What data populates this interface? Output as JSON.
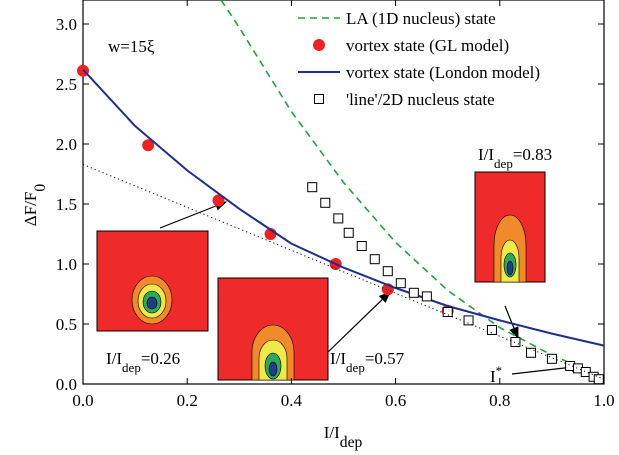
{
  "chart_data": {
    "type": "line",
    "xlabel": {
      "text": "I/I",
      "sub": "dep"
    },
    "ylabel": {
      "text": "ΔF/F",
      "sub": "0"
    },
    "xlim": [
      0,
      1
    ],
    "ylim": [
      0,
      3.2
    ],
    "xticks": [
      {
        "value": 0,
        "label": "0.0"
      },
      0.2,
      0.4,
      0.6,
      0.8,
      {
        "value": 1,
        "label": "1.0"
      }
    ],
    "yticks": [
      {
        "value": 0,
        "label": "0.0"
      },
      0.5,
      {
        "value": 1,
        "label": "1.0"
      },
      1.5,
      {
        "value": 2,
        "label": "2.0"
      },
      2.5,
      {
        "value": 3,
        "label": "3.0"
      }
    ],
    "legend": "upper right",
    "series": [
      {
        "name": "LA (1D nucleus) state",
        "color": "#22a33a",
        "style": "dash",
        "x": [
          0.265,
          0.3,
          0.4,
          0.5,
          0.6,
          0.7,
          0.8,
          0.9,
          1.0
        ],
        "values": [
          3.2,
          2.97,
          2.27,
          1.68,
          1.18,
          0.78,
          0.47,
          0.24,
          0.06
        ]
      },
      {
        "name": "vortex state (GL model)",
        "color": "#ee2222",
        "style": "dot",
        "x": [
          0,
          0.125,
          0.26,
          0.36,
          0.485,
          0.585,
          0.7
        ],
        "values": [
          2.61,
          1.99,
          1.53,
          1.25,
          1.0,
          0.79,
          0.61
        ]
      },
      {
        "name": "vortex state (London model)",
        "color": "#1f2e8c",
        "style": "line",
        "x": [
          0,
          0.1,
          0.2,
          0.3,
          0.4,
          0.5,
          0.6,
          0.7,
          0.8,
          0.9,
          1.0
        ],
        "values": [
          2.62,
          2.15,
          1.78,
          1.46,
          1.17,
          0.97,
          0.8,
          0.65,
          0.53,
          0.42,
          0.32
        ]
      },
      {
        "name": "'line'/2D nucleus state",
        "color": "#000000",
        "style": "square",
        "x": [
          0.44,
          0.465,
          0.49,
          0.51,
          0.535,
          0.56,
          0.585,
          0.61,
          0.635,
          0.66,
          0.7,
          0.74,
          0.785,
          0.83,
          0.86,
          0.9,
          0.935,
          0.95,
          0.965,
          0.98,
          0.99
        ],
        "values": [
          1.64,
          1.51,
          1.38,
          1.26,
          1.15,
          1.04,
          0.94,
          0.84,
          0.76,
          0.73,
          0.6,
          0.53,
          0.45,
          0.35,
          0.26,
          0.21,
          0.15,
          0.13,
          0.1,
          0.06,
          0.04
        ]
      },
      {
        "color": "#000000",
        "style": "dotted",
        "x": [
          0,
          1
        ],
        "values": [
          1.83,
          0.04
        ]
      }
    ],
    "annotations": [
      {
        "text": "w=15ξ"
      },
      {
        "text": "I/I",
        "sub": "dep",
        "after": "=0.26"
      },
      {
        "text": "I/I",
        "sub": "dep",
        "after": "=0.57"
      },
      {
        "text": "I/I",
        "sub": "dep",
        "after": "=0.83"
      },
      {
        "text": "I",
        "sup": "*"
      }
    ]
  }
}
